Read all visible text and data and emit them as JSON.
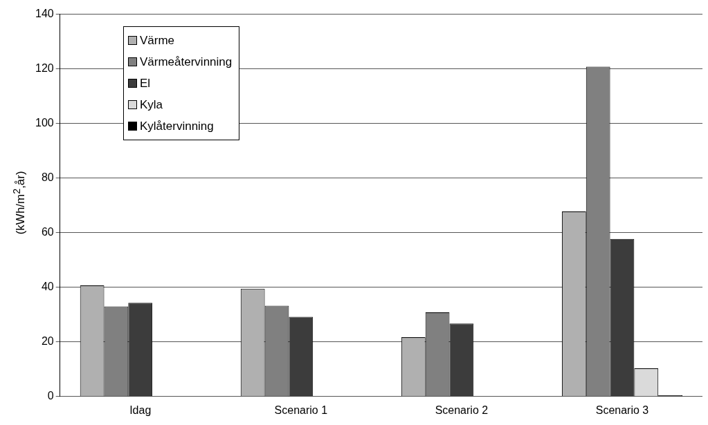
{
  "chart_data": {
    "type": "bar",
    "ylabel": "(kWh/m$^{2}$,år)",
    "categories": [
      "Idag",
      "Scenario 1",
      "Scenario 2",
      "Scenario 3"
    ],
    "series": [
      {
        "name": "Värme",
        "color": "#b0b0b0",
        "values": [
          40.7,
          39.5,
          21.7,
          67.8
        ]
      },
      {
        "name": "Värmeåtervinning",
        "color": "#808080",
        "values": [
          33,
          33.2,
          30.8,
          120.8
        ]
      },
      {
        "name": "El",
        "color": "#3c3c3c",
        "values": [
          34.3,
          29.2,
          26.7,
          57.7
        ]
      },
      {
        "name": "Kyla",
        "color": "#dadada",
        "values": [
          null,
          null,
          null,
          10.3
        ]
      },
      {
        "name": "Kylåtervinning",
        "color": "#000000",
        "values": [
          null,
          null,
          null,
          0.5
        ]
      }
    ],
    "ylim": [
      0,
      140
    ],
    "yticks": [
      0,
      20,
      40,
      60,
      80,
      100,
      120,
      140
    ],
    "grid": "y",
    "legend": "top left"
  }
}
